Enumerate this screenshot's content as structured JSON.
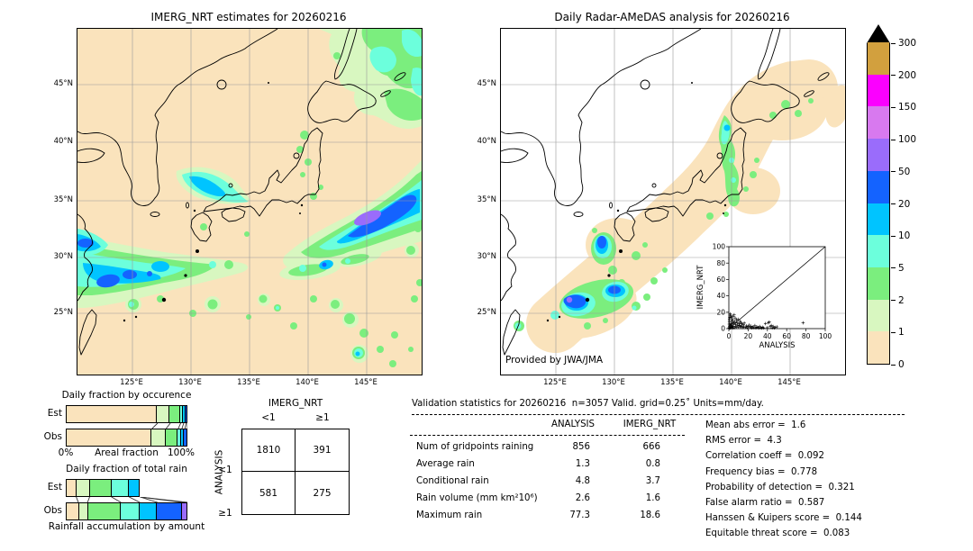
{
  "palette": {
    "level0": "#fae3bc",
    "level1": "#d8f7c0",
    "level2": "#7bee7e",
    "level3": "#6cffdc",
    "level4": "#00c4ff",
    "level5": "#1463ff",
    "level6": "#9a6cfb",
    "level7": "#d879ef",
    "level8": "#fb00ff",
    "level9": "#d2a03e",
    "overflow": "#000000"
  },
  "colorbar": {
    "units": "mm/day",
    "tick_labels_bottom_to_top": [
      "0",
      "1",
      "2",
      "5",
      "10",
      "20",
      "50",
      "100",
      "150",
      "200",
      "300"
    ],
    "colors_bottom_to_top": [
      "level0",
      "level1",
      "level2",
      "level3",
      "level4",
      "level5",
      "level6",
      "level7",
      "level8",
      "level9"
    ]
  },
  "chart_data": [
    {
      "type": "heatmap",
      "title": "IMERG_NRT estimates for 20260216",
      "x_ticks": [
        "125°E",
        "130°E",
        "135°E",
        "140°E",
        "145°E"
      ],
      "y_ticks": [
        "45°N",
        "40°N",
        "35°N",
        "30°N",
        "25°N"
      ],
      "units": "mm/day",
      "colorscale_levels": [
        0,
        1,
        2,
        5,
        10,
        20,
        50,
        100,
        150,
        200,
        300
      ]
    },
    {
      "type": "heatmap",
      "title": "Daily Radar-AMeDAS analysis for 20260216",
      "x_ticks": [
        "125°E",
        "130°E",
        "135°E",
        "140°E",
        "145°E"
      ],
      "y_ticks": [
        "45°N",
        "40°N",
        "35°N",
        "30°N",
        "25°N"
      ],
      "units": "mm/day",
      "annotation": "Provided by JWA/JMA",
      "colorscale_levels": [
        0,
        1,
        2,
        5,
        10,
        20,
        50,
        100,
        150,
        200,
        300
      ]
    },
    {
      "type": "scatter",
      "xlabel": "ANALYSIS",
      "ylabel": "IMERG_NRT",
      "xlim": [
        0,
        100
      ],
      "ylim": [
        0,
        100
      ],
      "x_ticks": [
        0,
        20,
        40,
        60,
        80,
        100
      ],
      "y_ticks": [
        0,
        20,
        40,
        60,
        80,
        100
      ],
      "identity_line": true,
      "marker": "+",
      "points": [
        [
          0.3,
          0.4
        ],
        [
          0.5,
          1.2
        ],
        [
          0.8,
          2.5
        ],
        [
          1,
          0.6
        ],
        [
          1.2,
          3.8
        ],
        [
          1.5,
          1.8
        ],
        [
          1.8,
          6
        ],
        [
          2,
          0.9
        ],
        [
          2.2,
          4.5
        ],
        [
          2.5,
          9
        ],
        [
          2.8,
          1.4
        ],
        [
          3,
          5.5
        ],
        [
          3.2,
          12
        ],
        [
          3.5,
          2.2
        ],
        [
          3.8,
          7.5
        ],
        [
          4,
          0.7
        ],
        [
          4.2,
          10
        ],
        [
          4.5,
          15
        ],
        [
          4.8,
          3
        ],
        [
          5,
          6.5
        ],
        [
          5.5,
          17
        ],
        [
          5.8,
          1.1
        ],
        [
          6,
          8.5
        ],
        [
          6.5,
          13
        ],
        [
          7,
          2.8
        ],
        [
          7.2,
          5.2
        ],
        [
          7.8,
          10.5
        ],
        [
          8,
          1.6
        ],
        [
          8.5,
          7
        ],
        [
          9,
          3.6
        ],
        [
          9.5,
          11.5
        ],
        [
          10,
          1.9
        ],
        [
          10.5,
          6.2
        ],
        [
          11,
          4.2
        ],
        [
          11.5,
          8.8
        ],
        [
          12,
          2.4
        ],
        [
          12.5,
          7.6
        ],
        [
          13,
          3.2
        ],
        [
          13.5,
          5.8
        ],
        [
          14,
          1.3
        ],
        [
          15,
          4.8
        ],
        [
          15.5,
          2.1
        ],
        [
          16,
          6.8
        ],
        [
          17,
          1.7
        ],
        [
          18,
          3.4
        ],
        [
          19,
          1
        ],
        [
          20,
          2.6
        ],
        [
          21,
          4.4
        ],
        [
          22,
          1.5
        ],
        [
          23,
          3
        ],
        [
          24,
          0.8
        ],
        [
          25,
          2.2
        ],
        [
          26,
          1.2
        ],
        [
          27,
          3.8
        ],
        [
          28,
          0.9
        ],
        [
          29,
          2
        ],
        [
          30,
          1.4
        ],
        [
          31,
          0.7
        ],
        [
          32,
          2.8
        ],
        [
          33,
          1.1
        ],
        [
          34,
          0.6
        ],
        [
          35,
          1.8
        ],
        [
          36,
          0.9
        ],
        [
          38,
          6.2
        ],
        [
          40,
          1.2
        ],
        [
          41,
          7
        ],
        [
          42,
          8
        ],
        [
          43,
          2.5
        ],
        [
          44,
          4
        ],
        [
          45,
          1
        ],
        [
          46,
          2.8
        ],
        [
          47,
          0.8
        ],
        [
          48,
          1.6
        ],
        [
          50,
          2.2
        ],
        [
          77,
          7
        ],
        [
          0.4,
          5.5
        ],
        [
          0.6,
          8.8
        ],
        [
          0.7,
          11.5
        ],
        [
          0.9,
          14
        ],
        [
          1.1,
          16.5
        ],
        [
          1.4,
          18
        ],
        [
          2.1,
          13.5
        ],
        [
          2.6,
          15.5
        ]
      ]
    },
    {
      "type": "bar",
      "stacked": true,
      "orientation": "horizontal",
      "title": "Daily fraction by occurence",
      "xlabel": "Areal fraction",
      "x_tick_labels": [
        "0%",
        "100%"
      ],
      "categories": [
        "Est",
        "Obs"
      ],
      "rows": [
        {
          "name": "Est",
          "segments": [
            {
              "level": 0,
              "fraction": 0.755
            },
            {
              "level": 1,
              "fraction": 0.105
            },
            {
              "level": 2,
              "fraction": 0.085
            },
            {
              "level": 3,
              "fraction": 0.025
            },
            {
              "level": 4,
              "fraction": 0.02
            },
            {
              "level": 5,
              "fraction": 0.01
            }
          ]
        },
        {
          "name": "Obs",
          "segments": [
            {
              "level": 0,
              "fraction": 0.71
            },
            {
              "level": 1,
              "fraction": 0.115
            },
            {
              "level": 2,
              "fraction": 0.1
            },
            {
              "level": 3,
              "fraction": 0.03
            },
            {
              "level": 4,
              "fraction": 0.025
            },
            {
              "level": 5,
              "fraction": 0.02
            }
          ]
        }
      ],
      "connectors": [
        [
          0.755,
          0.71
        ],
        [
          0.86,
          0.825
        ],
        [
          0.945,
          0.925
        ],
        [
          0.97,
          0.955
        ],
        [
          0.99,
          0.98
        ],
        [
          1,
          1
        ]
      ]
    },
    {
      "type": "bar",
      "stacked": true,
      "orientation": "horizontal",
      "title": "Daily fraction of total rain",
      "xlabel": "Rainfall accumulation by amount",
      "categories": [
        "Est",
        "Obs"
      ],
      "rows": [
        {
          "name": "Est",
          "segments": [
            {
              "level": 0,
              "fraction": 0.086
            },
            {
              "level": 1,
              "fraction": 0.11
            },
            {
              "level": 2,
              "fraction": 0.18
            },
            {
              "level": 3,
              "fraction": 0.145
            },
            {
              "level": 4,
              "fraction": 0.09
            }
          ]
        },
        {
          "name": "Obs",
          "segments": [
            {
              "level": 0,
              "fraction": 0.104
            },
            {
              "level": 1,
              "fraction": 0.075
            },
            {
              "level": 2,
              "fraction": 0.275
            },
            {
              "level": 3,
              "fraction": 0.155
            },
            {
              "level": 4,
              "fraction": 0.145
            },
            {
              "level": 5,
              "fraction": 0.205
            },
            {
              "level": 6,
              "fraction": 0.041
            }
          ]
        }
      ],
      "connectors": [
        [
          0.086,
          0.104
        ],
        [
          0.196,
          0.179
        ],
        [
          0.376,
          0.454
        ],
        [
          0.521,
          0.609
        ],
        [
          0.611,
          0.754
        ],
        [
          0.611,
          0.959
        ],
        [
          0.611,
          1.0
        ]
      ]
    },
    {
      "type": "table",
      "col_group_label": "IMERG_NRT",
      "row_group_label": "ANALYSIS",
      "col_headers": [
        "<1",
        "≥1"
      ],
      "row_headers": [
        "<1",
        "≥1"
      ],
      "values": [
        [
          1810,
          391
        ],
        [
          581,
          275
        ]
      ]
    },
    {
      "type": "table",
      "title": "Validation statistics for 20260216  n=3057 Valid. grid=0.25˚ Units=mm/day.",
      "col_headers": [
        "ANALYSIS",
        "IMERG_NRT"
      ],
      "rows": [
        {
          "label": "Num of gridpoints raining",
          "analysis": "856",
          "imerg_nrt": "666"
        },
        {
          "label": "Average rain",
          "analysis": "1.3",
          "imerg_nrt": "0.8"
        },
        {
          "label": "Conditional rain",
          "analysis": "4.8",
          "imerg_nrt": "3.7"
        },
        {
          "label": "Rain volume (mm km²10⁶)",
          "analysis": "2.6",
          "imerg_nrt": "1.6"
        },
        {
          "label": "Maximum rain",
          "analysis": "77.3",
          "imerg_nrt": "18.6"
        }
      ]
    },
    {
      "type": "table",
      "rows": [
        {
          "label": "Mean abs error",
          "value": "1.6"
        },
        {
          "label": "RMS error",
          "value": "4.3"
        },
        {
          "label": "Correlation coeff",
          "value": "0.092"
        },
        {
          "label": "Frequency bias",
          "value": "0.778"
        },
        {
          "label": "Probability of detection",
          "value": "0.321"
        },
        {
          "label": "False alarm ratio",
          "value": "0.587"
        },
        {
          "label": "Hanssen & Kuipers score",
          "value": "0.144"
        },
        {
          "label": "Equitable threat score",
          "value": "0.083"
        }
      ]
    }
  ]
}
